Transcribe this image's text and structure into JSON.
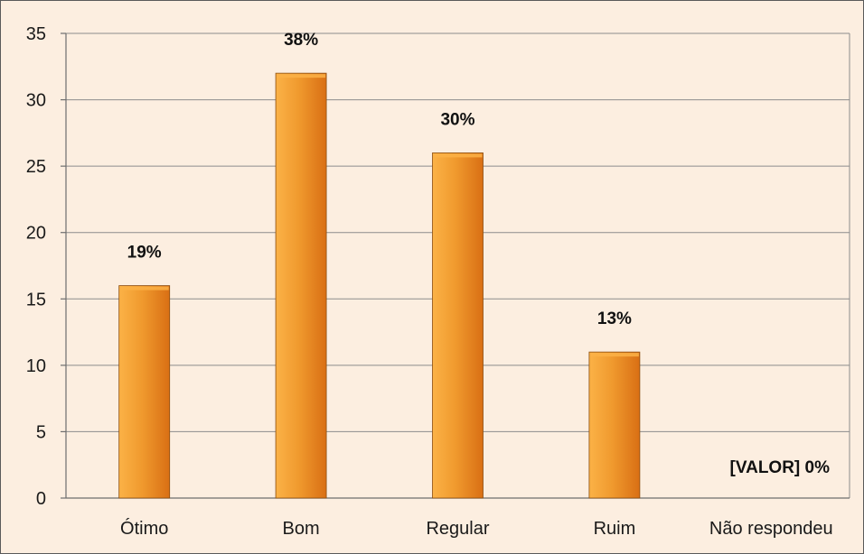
{
  "chart_data": {
    "type": "bar",
    "categories": [
      "Ótimo",
      "Bom",
      "Regular",
      "Ruim",
      "Não respondeu"
    ],
    "values": [
      16,
      32,
      26,
      11,
      0
    ],
    "data_labels": [
      "19%",
      "38%",
      "30%",
      "13%",
      "[VALOR] 0%"
    ],
    "yticks": [
      "0",
      "5",
      "10",
      "15",
      "20",
      "25",
      "30",
      "35"
    ],
    "ylim": [
      0,
      35
    ],
    "grid": true,
    "legend": "none",
    "title": "",
    "xlabel": "",
    "ylabel": "",
    "colors": {
      "background": "#fceee0",
      "bar_light": "#fbb247",
      "bar_mid": "#f09a2e",
      "bar_dark": "#d96f14",
      "bar_edge": "#8a4d10",
      "grid": "#8c8c8c",
      "axis": "#6e6e6e"
    }
  }
}
